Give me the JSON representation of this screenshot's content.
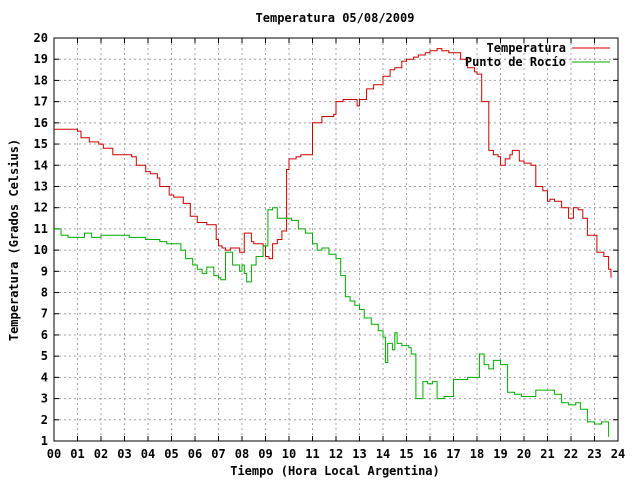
{
  "chart_data": {
    "type": "line",
    "title": "Temperatura 05/08/2009",
    "xlabel": "Tiempo (Hora Local Argentina)",
    "ylabel": "Temperatura (Grados Celsius)",
    "xlim": [
      0,
      24
    ],
    "ylim": [
      1,
      20
    ],
    "xticks": [
      "00",
      "01",
      "02",
      "03",
      "04",
      "05",
      "06",
      "07",
      "08",
      "09",
      "10",
      "11",
      "12",
      "13",
      "14",
      "15",
      "16",
      "17",
      "18",
      "19",
      "20",
      "21",
      "22",
      "23",
      "24"
    ],
    "yticks": [
      "1",
      "2",
      "3",
      "4",
      "5",
      "6",
      "7",
      "8",
      "9",
      "10",
      "11",
      "12",
      "13",
      "14",
      "15",
      "16",
      "17",
      "18",
      "19",
      "20"
    ],
    "grid": true,
    "legend_position": "top-right",
    "series": [
      {
        "name": "Temperatura",
        "color": "#cc0000",
        "x": [
          0.0,
          1.0,
          1.15,
          1.5,
          1.9,
          2.1,
          2.5,
          3.0,
          3.3,
          3.5,
          3.9,
          4.1,
          4.4,
          4.5,
          4.9,
          5.1,
          5.5,
          5.8,
          6.1,
          6.5,
          6.9,
          7.0,
          7.15,
          7.3,
          7.5,
          7.9,
          8.1,
          8.4,
          8.5,
          8.9,
          9.0,
          9.15,
          9.3,
          9.5,
          9.7,
          9.9,
          10.0,
          10.3,
          10.5,
          10.8,
          11.0,
          11.4,
          11.9,
          12.0,
          12.3,
          12.5,
          12.9,
          13.0,
          13.3,
          13.6,
          14.0,
          14.3,
          14.5,
          14.8,
          15.0,
          15.3,
          15.5,
          15.8,
          16.0,
          16.3,
          16.5,
          16.8,
          17.0,
          17.3,
          17.6,
          17.9,
          18.0,
          18.2,
          18.5,
          18.7,
          18.9,
          19.0,
          19.2,
          19.4,
          19.5,
          19.8,
          20.0,
          20.3,
          20.5,
          20.8,
          21.0,
          21.1,
          21.3,
          21.6,
          21.9,
          22.1,
          22.3,
          22.5,
          22.7,
          23.1,
          23.4,
          23.6
        ],
        "y": [
          15.7,
          15.6,
          15.3,
          15.1,
          15.0,
          14.8,
          14.5,
          14.5,
          14.4,
          14.0,
          13.7,
          13.6,
          13.4,
          13.0,
          12.6,
          12.5,
          12.2,
          11.6,
          11.3,
          11.2,
          10.5,
          10.2,
          10.1,
          10.0,
          10.1,
          9.9,
          10.8,
          10.4,
          10.3,
          10.2,
          9.7,
          9.6,
          10.3,
          10.5,
          10.9,
          13.8,
          14.3,
          14.4,
          14.5,
          14.5,
          16.0,
          16.3,
          16.4,
          17.0,
          17.1,
          17.1,
          16.8,
          17.1,
          17.6,
          17.8,
          18.2,
          18.5,
          18.6,
          18.9,
          19.0,
          19.1,
          19.2,
          19.3,
          19.4,
          19.5,
          19.4,
          19.3,
          19.3,
          19.0,
          18.6,
          18.4,
          18.3,
          17.0,
          14.7,
          14.5,
          14.4,
          14.0,
          14.3,
          14.5,
          14.7,
          14.2,
          14.1,
          14.0,
          13.0,
          12.8,
          12.3,
          12.4,
          12.3,
          12.0,
          11.5,
          12.0,
          11.9,
          11.5,
          10.7,
          9.9,
          9.7,
          9.1
        ],
        "y_tail": [
          8.7
        ]
      },
      {
        "name": "Punto de Rocío",
        "color": "#00aa00",
        "x": [
          0.0,
          0.3,
          0.6,
          1.0,
          1.3,
          1.6,
          2.0,
          2.4,
          2.8,
          3.2,
          3.5,
          3.9,
          4.2,
          4.5,
          4.8,
          5.1,
          5.4,
          5.6,
          5.9,
          6.1,
          6.3,
          6.5,
          6.8,
          7.0,
          7.1,
          7.3,
          7.6,
          7.9,
          8.0,
          8.1,
          8.2,
          8.4,
          8.6,
          8.9,
          9.1,
          9.3,
          9.5,
          9.8,
          10.1,
          10.4,
          10.7,
          11.0,
          11.2,
          11.4,
          11.7,
          12.0,
          12.2,
          12.4,
          12.6,
          12.8,
          13.0,
          13.2,
          13.5,
          13.8,
          14.0,
          14.1,
          14.2,
          14.4,
          14.5,
          14.6,
          14.8,
          15.0,
          15.1,
          15.2,
          15.4,
          15.7,
          15.9,
          16.1,
          16.3,
          16.6,
          16.9,
          17.0,
          17.3,
          17.6,
          17.9,
          18.1,
          18.3,
          18.5,
          18.7,
          19.0,
          19.3,
          19.6,
          19.9,
          20.2,
          20.5,
          20.8,
          21.1,
          21.3,
          21.6,
          21.9,
          22.2,
          22.4,
          22.7,
          23.0,
          23.3,
          23.5
        ],
        "y": [
          11.0,
          10.7,
          10.6,
          10.6,
          10.8,
          10.6,
          10.7,
          10.7,
          10.7,
          10.6,
          10.6,
          10.5,
          10.5,
          10.4,
          10.3,
          10.3,
          10.0,
          9.6,
          9.3,
          9.1,
          8.9,
          9.2,
          8.8,
          8.7,
          8.6,
          9.9,
          9.3,
          9.0,
          9.3,
          8.9,
          8.5,
          9.3,
          9.7,
          10.2,
          11.9,
          12.0,
          11.5,
          11.5,
          11.4,
          11.0,
          10.8,
          10.3,
          10.0,
          10.1,
          9.8,
          9.6,
          8.8,
          7.8,
          7.6,
          7.4,
          7.2,
          6.8,
          6.5,
          6.2,
          5.9,
          4.7,
          5.6,
          5.3,
          6.1,
          5.6,
          5.5,
          5.5,
          5.4,
          5.1,
          3.0,
          3.8,
          3.7,
          3.8,
          3.0,
          3.1,
          3.1,
          3.9,
          3.9,
          4.0,
          4.0,
          5.1,
          4.6,
          4.4,
          4.8,
          4.6,
          3.3,
          3.2,
          3.1,
          3.1,
          3.4,
          3.4,
          3.4,
          3.2,
          2.8,
          2.7,
          2.8,
          2.5,
          1.9,
          1.8,
          1.9,
          1.9
        ],
        "y_tail": [
          1.2
        ]
      }
    ]
  }
}
